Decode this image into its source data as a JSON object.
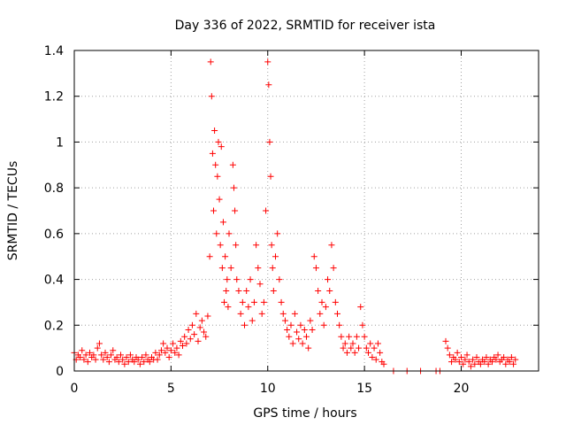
{
  "chart_data": {
    "type": "scatter",
    "title": "Day 336 of 2022, SRMTID for receiver ista",
    "xlabel": "GPS time / hours",
    "ylabel": "SRMTID / TECUs",
    "xlim": [
      0,
      24
    ],
    "ylim": [
      0,
      1.4
    ],
    "grid": true,
    "xticks": [
      0,
      5,
      10,
      15,
      20
    ],
    "xtick_labels": [
      "0",
      "5",
      "10",
      "15",
      "20"
    ],
    "yticks": [
      0,
      0.2,
      0.4,
      0.6,
      0.8,
      1,
      1.2,
      1.4
    ],
    "ytick_labels": [
      "0",
      "0.2",
      "0.4",
      "0.6",
      "0.8",
      "1",
      "1.2",
      "1.4"
    ],
    "marker": "+",
    "color": "#ff0000",
    "series": [
      {
        "name": "SRMTID",
        "points": [
          [
            0.0,
            0.08
          ],
          [
            0.1,
            0.05
          ],
          [
            0.2,
            0.07
          ],
          [
            0.3,
            0.06
          ],
          [
            0.4,
            0.09
          ],
          [
            0.5,
            0.05
          ],
          [
            0.6,
            0.07
          ],
          [
            0.7,
            0.04
          ],
          [
            0.8,
            0.08
          ],
          [
            0.9,
            0.06
          ],
          [
            1.0,
            0.07
          ],
          [
            1.1,
            0.05
          ],
          [
            1.2,
            0.1
          ],
          [
            1.3,
            0.12
          ],
          [
            1.4,
            0.07
          ],
          [
            1.5,
            0.05
          ],
          [
            1.6,
            0.08
          ],
          [
            1.7,
            0.06
          ],
          [
            1.8,
            0.04
          ],
          [
            1.9,
            0.07
          ],
          [
            2.0,
            0.09
          ],
          [
            2.1,
            0.05
          ],
          [
            2.2,
            0.06
          ],
          [
            2.3,
            0.04
          ],
          [
            2.4,
            0.07
          ],
          [
            2.5,
            0.05
          ],
          [
            2.6,
            0.03
          ],
          [
            2.7,
            0.06
          ],
          [
            2.8,
            0.04
          ],
          [
            2.9,
            0.07
          ],
          [
            3.0,
            0.05
          ],
          [
            3.1,
            0.04
          ],
          [
            3.2,
            0.06
          ],
          [
            3.3,
            0.05
          ],
          [
            3.4,
            0.03
          ],
          [
            3.5,
            0.06
          ],
          [
            3.6,
            0.04
          ],
          [
            3.7,
            0.07
          ],
          [
            3.8,
            0.05
          ],
          [
            3.9,
            0.04
          ],
          [
            4.0,
            0.06
          ],
          [
            4.1,
            0.05
          ],
          [
            4.2,
            0.08
          ],
          [
            4.3,
            0.05
          ],
          [
            4.4,
            0.07
          ],
          [
            4.5,
            0.09
          ],
          [
            4.6,
            0.12
          ],
          [
            4.7,
            0.08
          ],
          [
            4.8,
            0.1
          ],
          [
            4.9,
            0.06
          ],
          [
            5.0,
            0.09
          ],
          [
            5.1,
            0.12
          ],
          [
            5.2,
            0.08
          ],
          [
            5.3,
            0.1
          ],
          [
            5.4,
            0.07
          ],
          [
            5.5,
            0.13
          ],
          [
            5.6,
            0.11
          ],
          [
            5.7,
            0.15
          ],
          [
            5.8,
            0.12
          ],
          [
            5.9,
            0.18
          ],
          [
            6.0,
            0.14
          ],
          [
            6.1,
            0.2
          ],
          [
            6.2,
            0.16
          ],
          [
            6.3,
            0.25
          ],
          [
            6.4,
            0.13
          ],
          [
            6.5,
            0.19
          ],
          [
            6.6,
            0.22
          ],
          [
            6.7,
            0.17
          ],
          [
            6.8,
            0.15
          ],
          [
            6.9,
            0.24
          ],
          [
            7.0,
            0.5
          ],
          [
            7.05,
            1.35
          ],
          [
            7.1,
            1.2
          ],
          [
            7.15,
            0.95
          ],
          [
            7.2,
            0.7
          ],
          [
            7.25,
            1.05
          ],
          [
            7.3,
            0.9
          ],
          [
            7.35,
            0.6
          ],
          [
            7.4,
            0.85
          ],
          [
            7.45,
            1.0
          ],
          [
            7.5,
            0.75
          ],
          [
            7.55,
            0.55
          ],
          [
            7.6,
            0.98
          ],
          [
            7.65,
            0.45
          ],
          [
            7.7,
            0.65
          ],
          [
            7.75,
            0.3
          ],
          [
            7.8,
            0.5
          ],
          [
            7.85,
            0.35
          ],
          [
            7.9,
            0.4
          ],
          [
            7.95,
            0.28
          ],
          [
            8.0,
            0.6
          ],
          [
            8.1,
            0.45
          ],
          [
            8.2,
            0.9
          ],
          [
            8.25,
            0.8
          ],
          [
            8.3,
            0.7
          ],
          [
            8.35,
            0.55
          ],
          [
            8.4,
            0.4
          ],
          [
            8.5,
            0.35
          ],
          [
            8.6,
            0.25
          ],
          [
            8.7,
            0.3
          ],
          [
            8.8,
            0.2
          ],
          [
            8.9,
            0.35
          ],
          [
            9.0,
            0.28
          ],
          [
            9.1,
            0.4
          ],
          [
            9.2,
            0.22
          ],
          [
            9.3,
            0.3
          ],
          [
            9.4,
            0.55
          ],
          [
            9.5,
            0.45
          ],
          [
            9.6,
            0.38
          ],
          [
            9.7,
            0.25
          ],
          [
            9.8,
            0.3
          ],
          [
            9.9,
            0.7
          ],
          [
            10.0,
            1.35
          ],
          [
            10.05,
            1.25
          ],
          [
            10.1,
            1.0
          ],
          [
            10.15,
            0.85
          ],
          [
            10.2,
            0.55
          ],
          [
            10.25,
            0.45
          ],
          [
            10.3,
            0.35
          ],
          [
            10.4,
            0.5
          ],
          [
            10.5,
            0.6
          ],
          [
            10.6,
            0.4
          ],
          [
            10.7,
            0.3
          ],
          [
            10.8,
            0.25
          ],
          [
            10.9,
            0.22
          ],
          [
            11.0,
            0.18
          ],
          [
            11.1,
            0.15
          ],
          [
            11.2,
            0.2
          ],
          [
            11.3,
            0.12
          ],
          [
            11.4,
            0.25
          ],
          [
            11.5,
            0.17
          ],
          [
            11.6,
            0.14
          ],
          [
            11.7,
            0.2
          ],
          [
            11.8,
            0.12
          ],
          [
            11.9,
            0.18
          ],
          [
            12.0,
            0.15
          ],
          [
            12.1,
            0.1
          ],
          [
            12.2,
            0.22
          ],
          [
            12.3,
            0.18
          ],
          [
            12.4,
            0.5
          ],
          [
            12.5,
            0.45
          ],
          [
            12.6,
            0.35
          ],
          [
            12.7,
            0.25
          ],
          [
            12.8,
            0.3
          ],
          [
            12.9,
            0.2
          ],
          [
            13.0,
            0.28
          ],
          [
            13.1,
            0.4
          ],
          [
            13.2,
            0.35
          ],
          [
            13.3,
            0.55
          ],
          [
            13.4,
            0.45
          ],
          [
            13.5,
            0.3
          ],
          [
            13.6,
            0.25
          ],
          [
            13.7,
            0.2
          ],
          [
            13.8,
            0.15
          ],
          [
            13.9,
            0.1
          ],
          [
            14.0,
            0.12
          ],
          [
            14.1,
            0.08
          ],
          [
            14.2,
            0.15
          ],
          [
            14.3,
            0.1
          ],
          [
            14.4,
            0.12
          ],
          [
            14.5,
            0.08
          ],
          [
            14.6,
            0.15
          ],
          [
            14.7,
            0.1
          ],
          [
            14.8,
            0.28
          ],
          [
            14.9,
            0.2
          ],
          [
            15.0,
            0.15
          ],
          [
            15.1,
            0.1
          ],
          [
            15.2,
            0.08
          ],
          [
            15.3,
            0.12
          ],
          [
            15.4,
            0.06
          ],
          [
            15.5,
            0.1
          ],
          [
            15.6,
            0.05
          ],
          [
            15.7,
            0.12
          ],
          [
            15.8,
            0.08
          ],
          [
            15.9,
            0.04
          ],
          [
            16.0,
            0.03
          ],
          [
            16.5,
            0.0
          ],
          [
            17.2,
            0.0
          ],
          [
            17.9,
            0.0
          ],
          [
            18.7,
            0.0
          ],
          [
            18.9,
            0.0
          ],
          [
            19.2,
            0.13
          ],
          [
            19.3,
            0.1
          ],
          [
            19.4,
            0.07
          ],
          [
            19.5,
            0.04
          ],
          [
            19.6,
            0.06
          ],
          [
            19.7,
            0.05
          ],
          [
            19.8,
            0.08
          ],
          [
            19.9,
            0.04
          ],
          [
            20.0,
            0.06
          ],
          [
            20.1,
            0.03
          ],
          [
            20.2,
            0.05
          ],
          [
            20.3,
            0.07
          ],
          [
            20.4,
            0.04
          ],
          [
            20.5,
            0.02
          ],
          [
            20.6,
            0.05
          ],
          [
            20.7,
            0.03
          ],
          [
            20.8,
            0.06
          ],
          [
            20.9,
            0.04
          ],
          [
            21.0,
            0.03
          ],
          [
            21.1,
            0.05
          ],
          [
            21.2,
            0.04
          ],
          [
            21.3,
            0.06
          ],
          [
            21.4,
            0.03
          ],
          [
            21.5,
            0.05
          ],
          [
            21.6,
            0.04
          ],
          [
            21.7,
            0.06
          ],
          [
            21.8,
            0.05
          ],
          [
            21.9,
            0.07
          ],
          [
            22.0,
            0.04
          ],
          [
            22.1,
            0.05
          ],
          [
            22.2,
            0.06
          ],
          [
            22.3,
            0.03
          ],
          [
            22.4,
            0.05
          ],
          [
            22.5,
            0.04
          ],
          [
            22.6,
            0.06
          ],
          [
            22.7,
            0.03
          ],
          [
            22.8,
            0.05
          ]
        ]
      }
    ]
  }
}
